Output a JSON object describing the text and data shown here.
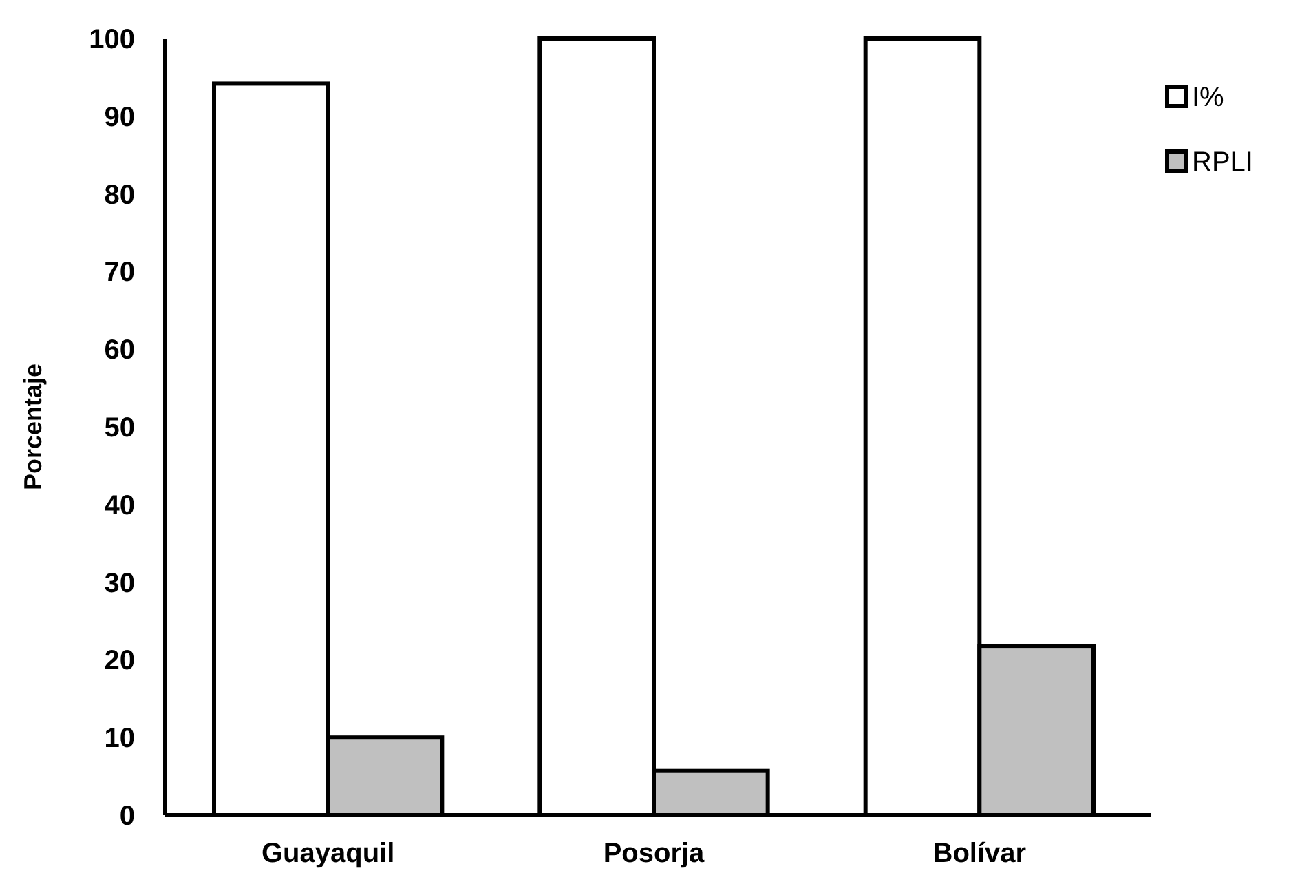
{
  "chart_data": {
    "type": "bar",
    "ylabel": "Porcentaje",
    "categories": [
      "Guayaquil",
      "Posorja",
      "Bolívar"
    ],
    "series": [
      {
        "name": "I%",
        "color": "#ffffff",
        "values": [
          94.2,
          100,
          100
        ]
      },
      {
        "name": "RPLI",
        "color": "#c0c0c0",
        "values": [
          10,
          5.7,
          21.8
        ]
      }
    ],
    "ylim": [
      0,
      100
    ],
    "yticks": [
      0,
      10,
      20,
      30,
      40,
      50,
      60,
      70,
      80,
      90,
      100
    ],
    "grid": false,
    "legend": "top right"
  }
}
